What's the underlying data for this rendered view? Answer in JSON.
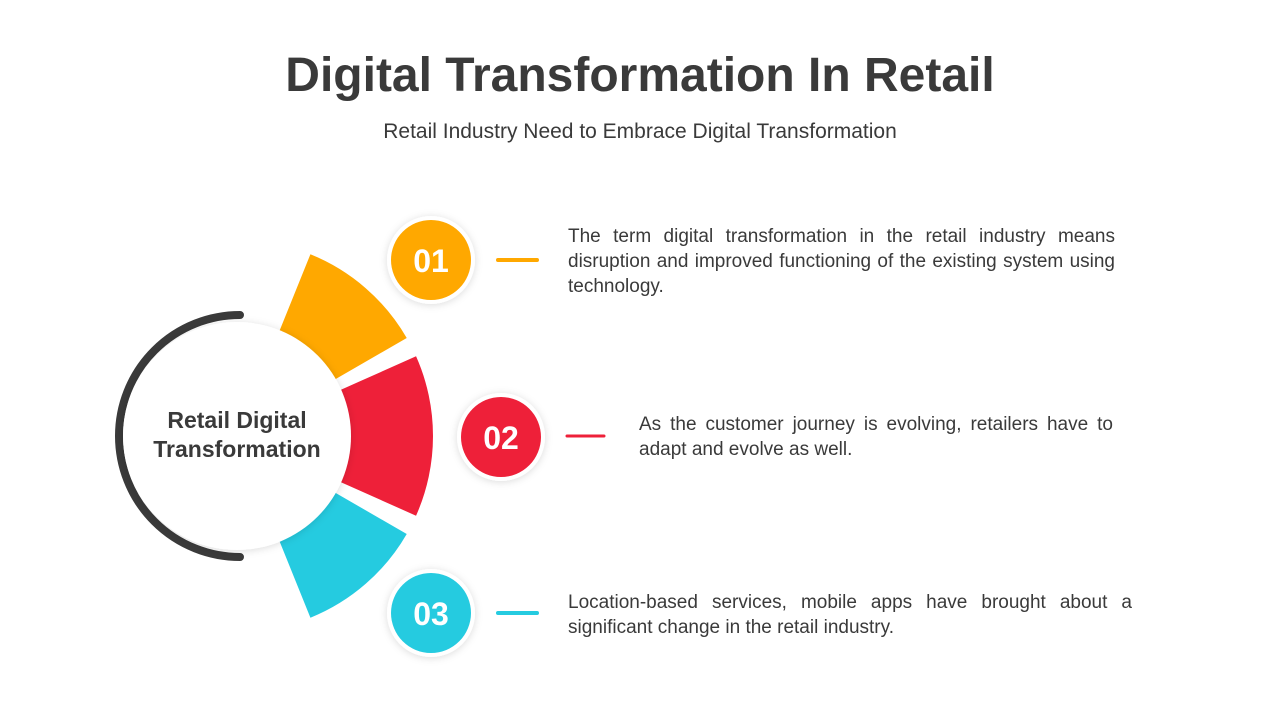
{
  "title": "Digital Transformation In Retail",
  "subtitle": "Retail Industry Need to Embrace Digital Transformation",
  "center": {
    "line1": "Retail Digital",
    "line2": "Transformation"
  },
  "steps": [
    {
      "number": "01",
      "color": "#FFA800",
      "text": "The term digital transformation in the retail industry means disruption and improved functioning of the existing system using technology."
    },
    {
      "number": "02",
      "color": "#EE2039",
      "text": "As the customer journey is evolving, retailers have to adapt and evolve as well."
    },
    {
      "number": "03",
      "color": "#25CBE0",
      "text": "Location-based services, mobile apps have brought about a significant change in the retail industry."
    }
  ],
  "colors": {
    "text": "#3a3a3a",
    "arc": "#3a3a3a",
    "background": "#ffffff"
  }
}
